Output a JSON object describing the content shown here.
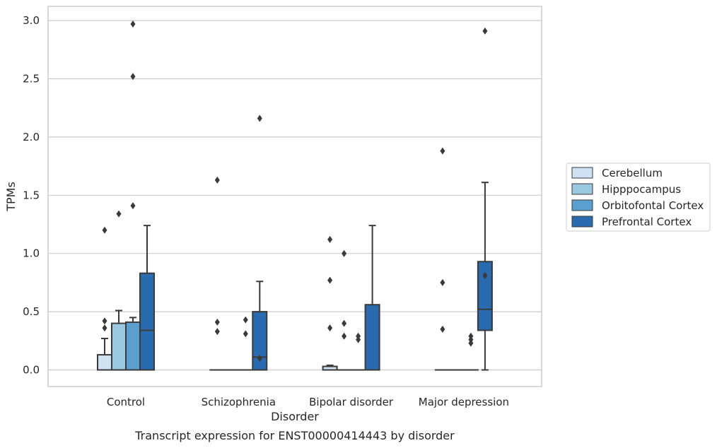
{
  "chart_data": {
    "type": "box",
    "caption": "Transcript expression for ENST00000414443 by disorder",
    "xlabel": "Disorder",
    "ylabel": "TPMs",
    "ylim": [
      -0.15,
      3.12
    ],
    "yticks": [
      0.0,
      0.5,
      1.0,
      1.5,
      2.0,
      2.5,
      3.0
    ],
    "ytick_labels": [
      "0.0",
      "0.5",
      "1.0",
      "1.5",
      "2.0",
      "2.5",
      "3.0"
    ],
    "grid": "horizontal",
    "legend_position": "right",
    "categories": [
      "Control",
      "Schizophrenia",
      "Bipolar disorder",
      "Major depression"
    ],
    "series": [
      {
        "name": "Cerebellum",
        "color": "#d0e1f1",
        "boxes": [
          {
            "q1": 0.0,
            "median": 0.0,
            "q3": 0.13,
            "whisker_low": 0.0,
            "whisker_high": 0.27,
            "outliers": [
              0.36,
              0.42,
              1.2
            ]
          },
          {
            "q1": 0.0,
            "median": 0.0,
            "q3": 0.0,
            "whisker_low": 0.0,
            "whisker_high": 0.0,
            "outliers": [
              0.33,
              0.41,
              1.63
            ]
          },
          {
            "q1": 0.0,
            "median": 0.0,
            "q3": 0.03,
            "whisker_low": 0.0,
            "whisker_high": 0.04,
            "outliers": [
              0.36,
              0.77,
              1.12
            ]
          },
          {
            "q1": 0.0,
            "median": 0.0,
            "q3": 0.0,
            "whisker_low": 0.0,
            "whisker_high": 0.0,
            "outliers": [
              0.35,
              0.75,
              1.88
            ]
          }
        ]
      },
      {
        "name": "Hipppocampus",
        "color": "#9ac8e0",
        "boxes": [
          {
            "q1": 0.0,
            "median": 0.0,
            "q3": 0.4,
            "whisker_low": 0.0,
            "whisker_high": 0.51,
            "outliers": [
              1.34
            ]
          },
          {
            "q1": 0.0,
            "median": 0.0,
            "q3": 0.0,
            "whisker_low": 0.0,
            "whisker_high": 0.0,
            "outliers": []
          },
          {
            "q1": 0.0,
            "median": 0.0,
            "q3": 0.0,
            "whisker_low": 0.0,
            "whisker_high": 0.0,
            "outliers": [
              0.29,
              0.4,
              1.0
            ]
          },
          {
            "q1": 0.0,
            "median": 0.0,
            "q3": 0.0,
            "whisker_low": 0.0,
            "whisker_high": 0.0,
            "outliers": []
          }
        ]
      },
      {
        "name": "Orbitofontal Cortex",
        "color": "#5a9fcd",
        "boxes": [
          {
            "q1": 0.0,
            "median": 0.0,
            "q3": 0.41,
            "whisker_low": 0.0,
            "whisker_high": 0.45,
            "outliers": [
              1.41,
              2.52,
              2.97
            ]
          },
          {
            "q1": 0.0,
            "median": 0.0,
            "q3": 0.0,
            "whisker_low": 0.0,
            "whisker_high": 0.0,
            "outliers": [
              0.31,
              0.43
            ]
          },
          {
            "q1": 0.0,
            "median": 0.0,
            "q3": 0.0,
            "whisker_low": 0.0,
            "whisker_high": 0.0,
            "outliers": [
              0.26,
              0.29
            ]
          },
          {
            "q1": 0.0,
            "median": 0.0,
            "q3": 0.0,
            "whisker_low": 0.0,
            "whisker_high": 0.0,
            "outliers": [
              0.23,
              0.26,
              0.29
            ]
          }
        ]
      },
      {
        "name": "Prefrontal Cortex",
        "color": "#2a6aae",
        "boxes": [
          {
            "q1": 0.0,
            "median": 0.34,
            "q3": 0.83,
            "whisker_low": 0.0,
            "whisker_high": 1.24,
            "outliers": []
          },
          {
            "q1": 0.0,
            "median": 0.11,
            "q3": 0.5,
            "whisker_low": 0.0,
            "whisker_high": 0.76,
            "outliers": [
              0.1,
              2.16
            ]
          },
          {
            "q1": 0.0,
            "median": 0.0,
            "q3": 0.56,
            "whisker_low": 0.0,
            "whisker_high": 1.24,
            "outliers": []
          },
          {
            "q1": 0.34,
            "median": 0.52,
            "q3": 0.93,
            "whisker_low": 0.0,
            "whisker_high": 1.61,
            "outliers": [
              0.81,
              2.91
            ]
          }
        ]
      }
    ]
  }
}
